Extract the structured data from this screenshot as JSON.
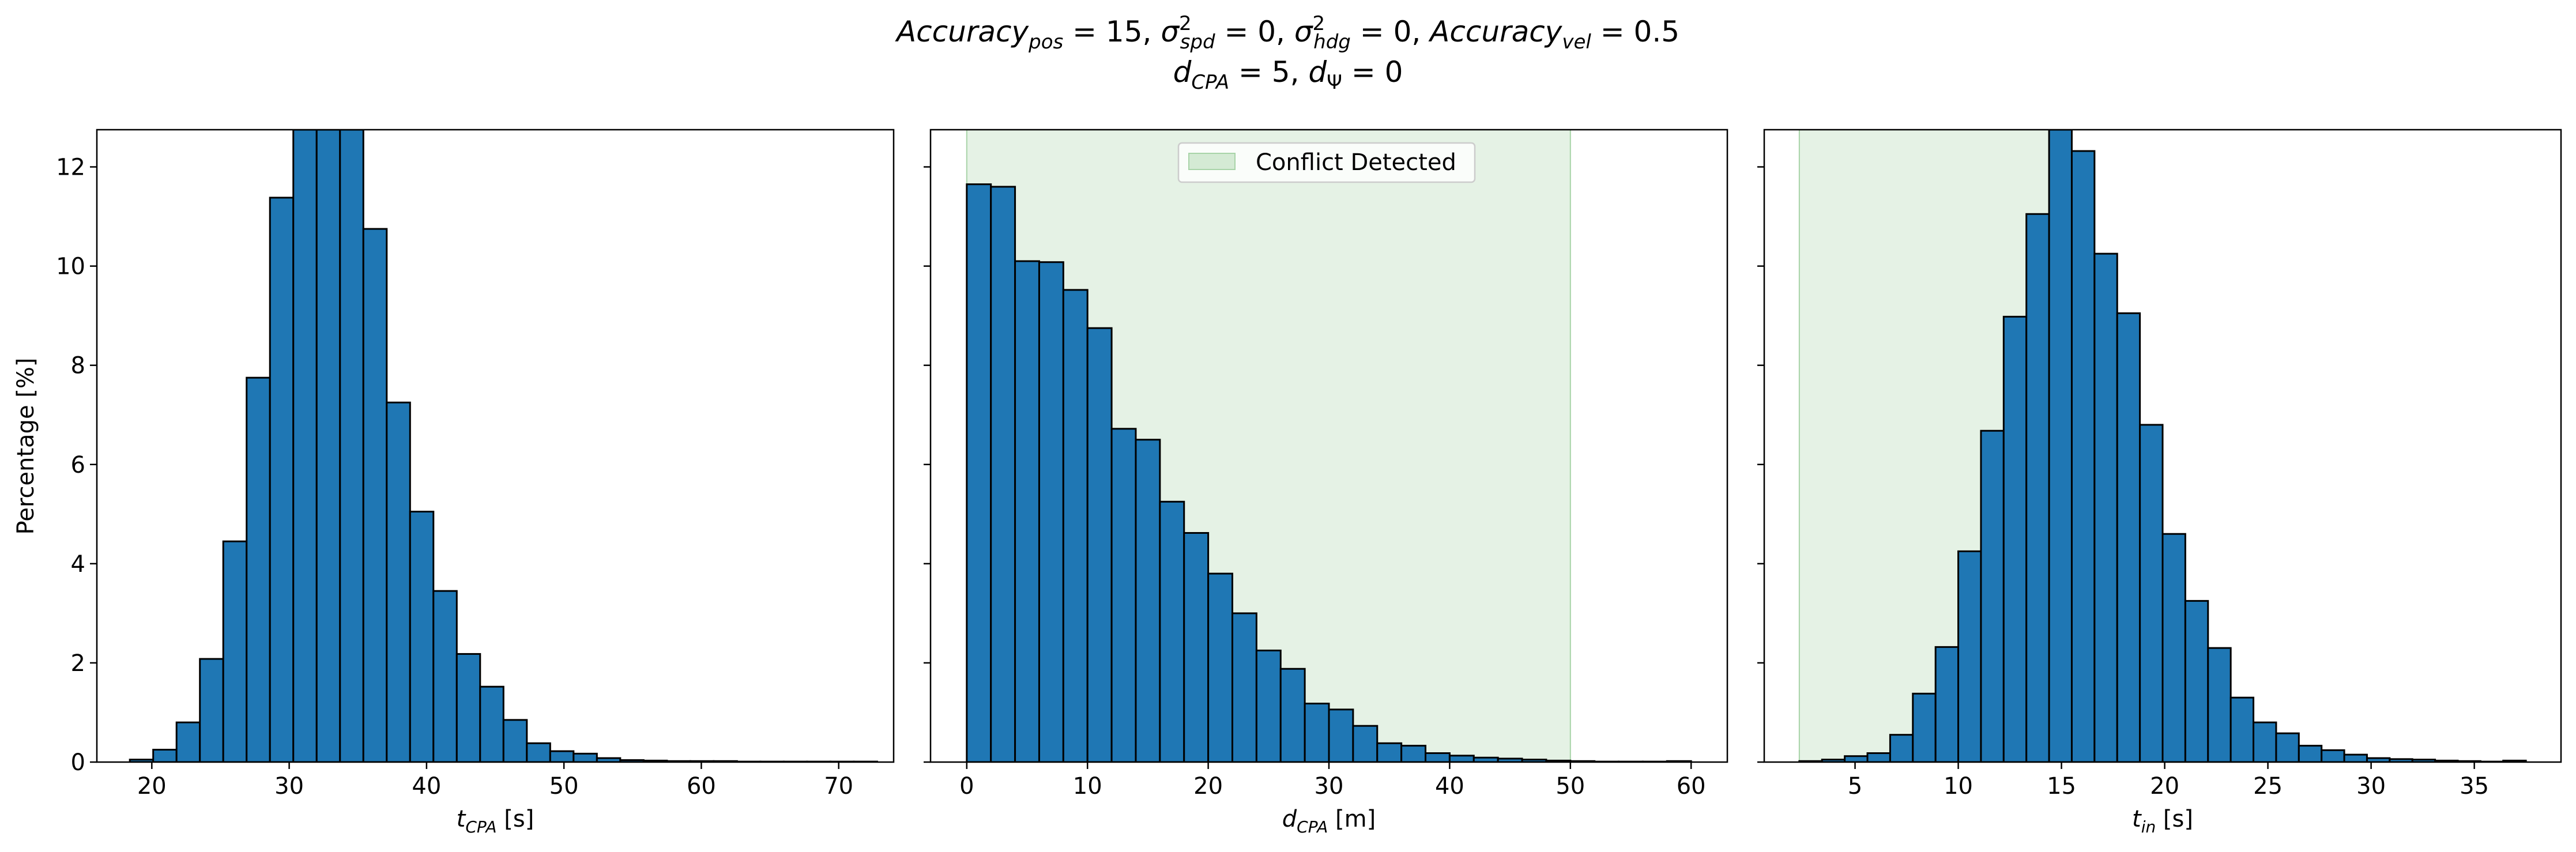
{
  "title_line1": "Accuracy_pos = 15, σ²_spd = 0, σ²_hdg = 0, Accuracy_vel = 0.5",
  "title_line2": "d_CPA = 5, d_Ψ = 0",
  "title_parts": {
    "acc": "Accuracy",
    "pos": "pos",
    "vel": "vel",
    "sigma": "σ",
    "sq": "2",
    "spd": "spd",
    "hdg": "hdg",
    "eq15": " = 15, ",
    "eq0a": " = 0, ",
    "eq0b": " = 0, ",
    "eq05": " = 0.5",
    "d": "d",
    "cpa": "CPA",
    "eq5": " = 5, ",
    "psi": "Ψ",
    "eq0c": " = 0"
  },
  "colors": {
    "bar": "#1f77b4",
    "edge": "#000000",
    "conflict": "#d4ead4",
    "conflict_edge": "#a8d4a8"
  },
  "chart_data": [
    {
      "type": "bar",
      "panel": "left",
      "xlabel": "t_CPA [s]",
      "xlabel_parts": {
        "sym": "t",
        "sub": "CPA",
        "unit": " [s]"
      },
      "ylabel": "Percentage [%]",
      "xlim": [
        16,
        74
      ],
      "ylim": [
        0,
        12.75
      ],
      "xticks": [
        20,
        30,
        40,
        50,
        60,
        70
      ],
      "yticks": [
        0,
        2,
        4,
        6,
        8,
        10,
        12
      ],
      "bin_edges": [
        18.4,
        20.1,
        21.8,
        23.5,
        25.2,
        26.9,
        28.6,
        30.3,
        32.0,
        33.7,
        35.4,
        37.1,
        38.8,
        40.5,
        42.2,
        43.9,
        45.6,
        47.3,
        49.0,
        50.7,
        52.4,
        54.1,
        55.8,
        57.5,
        59.2,
        60.9,
        62.6,
        64.3,
        66.0,
        67.7,
        69.4,
        71.1,
        72.8
      ],
      "values": [
        0.05,
        0.25,
        0.8,
        2.08,
        4.45,
        7.75,
        11.38,
        12.75,
        12.75,
        12.75,
        10.75,
        7.25,
        5.05,
        3.45,
        2.18,
        1.52,
        0.85,
        0.38,
        0.22,
        0.17,
        0.08,
        0.04,
        0.03,
        0.02,
        0.02,
        0.02,
        0.01,
        0.01,
        0.01,
        0.01,
        0.01,
        0.01
      ]
    },
    {
      "type": "bar",
      "panel": "middle",
      "xlabel": "d_CPA [m]",
      "xlabel_parts": {
        "sym": "d",
        "sub": "CPA",
        "unit": " [m]"
      },
      "xlim": [
        -3,
        63
      ],
      "ylim": [
        0,
        12.75
      ],
      "xticks": [
        0,
        10,
        20,
        30,
        40,
        50,
        60
      ],
      "yticks": [
        0,
        2,
        4,
        6,
        8,
        10,
        12
      ],
      "shaded_region": [
        0,
        50
      ],
      "legend": [
        "Conflict Detected"
      ],
      "legend_position": "upper center",
      "bin_edges": [
        0,
        2,
        4,
        6,
        8,
        10,
        12,
        14,
        16,
        18,
        20,
        22,
        24,
        26,
        28,
        30,
        32,
        34,
        36,
        38,
        40,
        42,
        44,
        46,
        48,
        50,
        52,
        54,
        56,
        58,
        60
      ],
      "values": [
        11.65,
        11.6,
        10.1,
        10.08,
        9.52,
        8.75,
        6.72,
        6.5,
        5.25,
        4.62,
        3.8,
        3.0,
        2.25,
        1.88,
        1.18,
        1.06,
        0.73,
        0.38,
        0.33,
        0.18,
        0.13,
        0.09,
        0.07,
        0.05,
        0.03,
        0.02,
        0.01,
        0.01,
        0.01,
        0.02
      ]
    },
    {
      "type": "bar",
      "panel": "right",
      "xlabel": "t_in [s]",
      "xlabel_parts": {
        "sym": "t",
        "sub": "in",
        "unit": " [s]"
      },
      "xlim": [
        0.6,
        39.2
      ],
      "ylim": [
        0,
        12.75
      ],
      "xticks": [
        5,
        10,
        15,
        20,
        25,
        30,
        35
      ],
      "yticks": [
        0,
        2,
        4,
        6,
        8,
        10,
        12
      ],
      "shaded_region": [
        2.3,
        14.9
      ],
      "bin_edges": [
        2.3,
        3.4,
        4.5,
        5.6,
        6.7,
        7.8,
        8.9,
        10.0,
        11.1,
        12.2,
        13.3,
        14.4,
        15.5,
        16.6,
        17.7,
        18.8,
        19.9,
        21.0,
        22.1,
        23.2,
        24.3,
        25.4,
        26.5,
        27.6,
        28.7,
        29.8,
        30.9,
        32.0,
        33.1,
        34.2,
        35.3,
        36.4,
        37.5
      ],
      "values": [
        0.02,
        0.05,
        0.12,
        0.18,
        0.55,
        1.38,
        2.32,
        4.25,
        6.68,
        8.98,
        11.05,
        12.75,
        12.32,
        10.25,
        9.05,
        6.8,
        4.6,
        3.25,
        2.3,
        1.3,
        0.8,
        0.58,
        0.33,
        0.24,
        0.15,
        0.08,
        0.06,
        0.05,
        0.03,
        0.02,
        0.01,
        0.03
      ]
    }
  ]
}
